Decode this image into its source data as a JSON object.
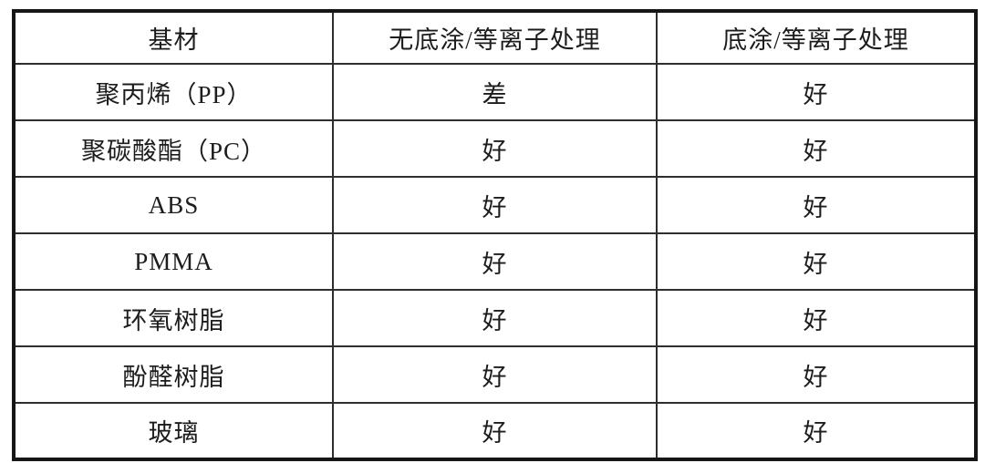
{
  "table": {
    "border_color": "#161616",
    "inner_line_color": "#2e2e2e",
    "text_color": "#1c1c1c",
    "columns": [
      "基材",
      "无底涂/等离子处理",
      "底涂/等离子处理"
    ],
    "rows": [
      [
        "聚丙烯（PP）",
        "差",
        "好"
      ],
      [
        "聚碳酸酯（PC）",
        "好",
        "好"
      ],
      [
        "ABS",
        "好",
        "好"
      ],
      [
        "PMMA",
        "好",
        "好"
      ],
      [
        "环氧树脂",
        "好",
        "好"
      ],
      [
        "酚醛树脂",
        "好",
        "好"
      ],
      [
        "玻璃",
        "好",
        "好"
      ]
    ]
  }
}
